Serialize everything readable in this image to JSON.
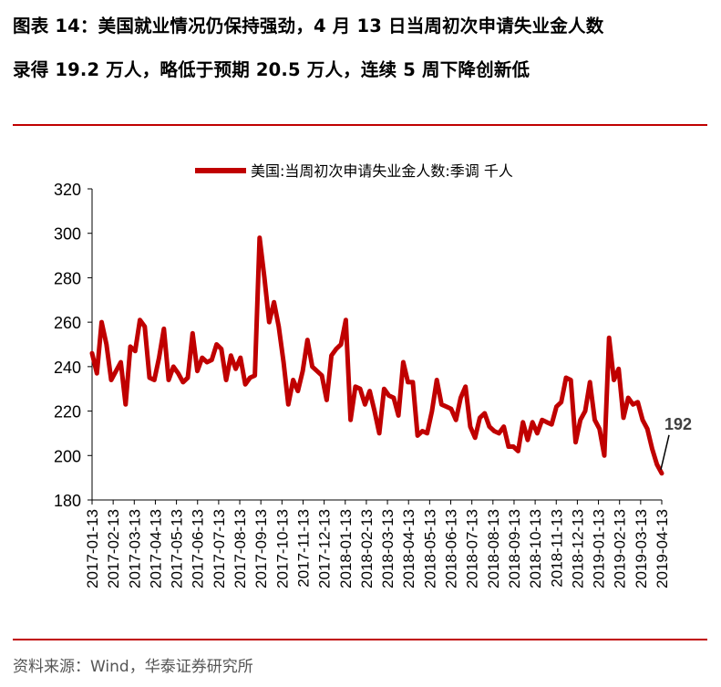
{
  "header": {
    "title_line1": "图表 14：美国就业情况仍保持强劲，4 月 13 日当周初次申请失业金人数",
    "title_line2": "录得 19.2 万人，略低于预期 20.5 万人，连续 5 周下降创新低"
  },
  "footer": {
    "source": "资料来源：Wind，华泰证券研究所"
  },
  "colors": {
    "line": "#c00000",
    "rule": "#c00000"
  },
  "chart_data": {
    "type": "line",
    "title": "",
    "xlabel": "",
    "ylabel": "",
    "ylim": [
      180,
      320
    ],
    "yticks": [
      180,
      200,
      220,
      240,
      260,
      280,
      300,
      320
    ],
    "grid": false,
    "legend_position": "top",
    "x_tick_labels": [
      "2017-01-13",
      "2017-02-13",
      "2017-03-13",
      "2017-04-13",
      "2017-05-13",
      "2017-06-13",
      "2017-07-13",
      "2017-08-13",
      "2017-09-13",
      "2017-10-13",
      "2017-11-13",
      "2017-12-13",
      "2018-01-13",
      "2018-02-13",
      "2018-03-13",
      "2018-04-13",
      "2018-05-13",
      "2018-06-13",
      "2018-07-13",
      "2018-08-13",
      "2018-09-13",
      "2018-10-13",
      "2018-11-13",
      "2018-12-13",
      "2019-01-13",
      "2019-02-13",
      "2019-03-13",
      "2019-04-13"
    ],
    "annotation": {
      "text": "192",
      "value": 192
    },
    "series": [
      {
        "name": "美国:当周初次申请失业金人数:季调 千人",
        "values": [
          246,
          237,
          260,
          250,
          234,
          238,
          242,
          223,
          249,
          247,
          261,
          258,
          235,
          234,
          244,
          257,
          234,
          240,
          237,
          233,
          235,
          255,
          238,
          244,
          242,
          243,
          250,
          248,
          234,
          245,
          239,
          244,
          232,
          235,
          236,
          298,
          280,
          260,
          269,
          258,
          242,
          223,
          234,
          229,
          238,
          252,
          240,
          238,
          236,
          225,
          245,
          248,
          250,
          261,
          216,
          231,
          230,
          223,
          229,
          220,
          210,
          230,
          227,
          226,
          218,
          242,
          233,
          233,
          209,
          211,
          210,
          220,
          234,
          223,
          222,
          221,
          216,
          226,
          231,
          213,
          208,
          217,
          219,
          213,
          211,
          210,
          213,
          204,
          204,
          202,
          215,
          207,
          215,
          210,
          216,
          215,
          214,
          222,
          224,
          235,
          234,
          206,
          216,
          220,
          233,
          216,
          212,
          200,
          253,
          234,
          239,
          217,
          226,
          223,
          224,
          216,
          212,
          203,
          196,
          192
        ]
      }
    ]
  }
}
